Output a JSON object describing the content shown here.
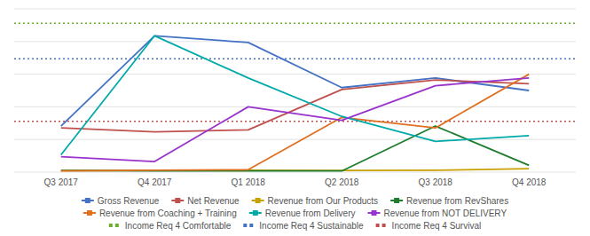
{
  "chart_data": {
    "type": "line",
    "categories": [
      "Q3 2017",
      "Q4 2017",
      "Q1 2018",
      "Q2 2018",
      "Q3 2018",
      "Q4 2018"
    ],
    "series": [
      {
        "name": "Gross Revenue",
        "color": "#4472C4",
        "values": [
          4800,
          14200,
          13500,
          8800,
          9800,
          8500
        ]
      },
      {
        "name": "Net Revenue",
        "color": "#C0504D",
        "values": [
          4600,
          4200,
          4400,
          8600,
          9600,
          9200
        ]
      },
      {
        "name": "Revenue from Our Products",
        "color": "#C8A000",
        "values": [
          150,
          180,
          200,
          180,
          200,
          350
        ]
      },
      {
        "name": "Revenue from RevShares",
        "color": "#1E7C2F",
        "values": [
          180,
          120,
          120,
          120,
          4800,
          700
        ]
      },
      {
        "name": "Revenue from Coaching + Training",
        "color": "#E07020",
        "values": [
          120,
          200,
          250,
          5700,
          4600,
          10200
        ]
      },
      {
        "name": "Revenue from Delivery",
        "color": "#00AAAA",
        "values": [
          1800,
          14200,
          9800,
          5800,
          3200,
          3800
        ]
      },
      {
        "name": "Revenue from NOT DELIVERY",
        "color": "#9933CC",
        "values": [
          1600,
          1100,
          6800,
          5400,
          9000,
          9800
        ]
      }
    ],
    "reference_lines": [
      {
        "name": "Income Req 4 Comfortable",
        "color": "#6AAF2E",
        "value": 15500,
        "line_style": "dotted"
      },
      {
        "name": "Income Req 4 Sustainable",
        "color": "#4472C4",
        "value": 11800,
        "line_style": "dotted"
      },
      {
        "name": "Income Req 4 Survival",
        "color": "#C0504D",
        "value": 5300,
        "line_style": "dotted"
      }
    ],
    "ylim": [
      0,
      17000
    ],
    "yticks": [
      0,
      3400,
      6800,
      10200,
      13600,
      17000
    ],
    "grid": true,
    "tick_labels": "x",
    "legend": "bottom"
  }
}
